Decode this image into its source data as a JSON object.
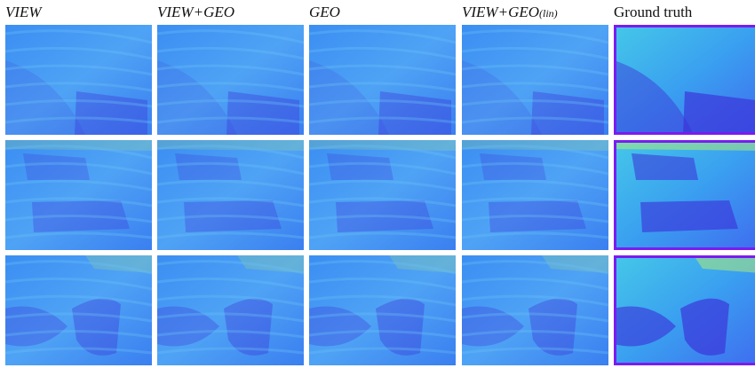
{
  "figure": {
    "columns": [
      {
        "text": "VIEW",
        "style": "italic"
      },
      {
        "text": "VIEW+GEO",
        "style": "italic"
      },
      {
        "text": "GEO",
        "style": "italic"
      },
      {
        "text": "VIEW+GEO",
        "suffix": "(lin)",
        "style": "italic"
      },
      {
        "text": "Ground truth",
        "style": "normal"
      }
    ]
  }
}
